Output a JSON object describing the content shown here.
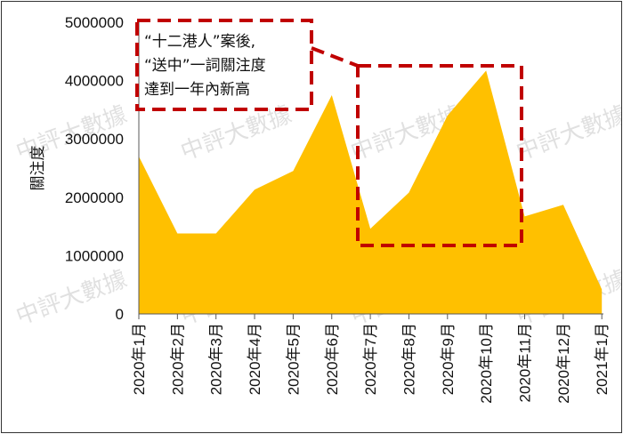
{
  "chart_data": {
    "type": "area",
    "title": "",
    "xlabel": "",
    "ylabel": "關注度",
    "categories": [
      "2020年1月",
      "2020年2月",
      "2020年3月",
      "2020年4月",
      "2020年5月",
      "2020年6月",
      "2020年7月",
      "2020年8月",
      "2020年9月",
      "2020年10月",
      "2020年11月",
      "2020年12月",
      "2021年1月"
    ],
    "series": [
      {
        "values": [
          2700000,
          1380000,
          1380000,
          2130000,
          2450000,
          3750000,
          1460000,
          2080000,
          3400000,
          4170000,
          1670000,
          1870000,
          420000
        ]
      }
    ],
    "ylim": [
      0,
      5000000
    ],
    "yticks": [
      "0",
      "1000000",
      "2000000",
      "3000000",
      "4000000",
      "5000000"
    ],
    "grid": false,
    "legend": "none",
    "fill_color": "#FFC000",
    "annotation": {
      "lines": [
        "“十二港人”案後,",
        "“送中”一詞關注度",
        "達到一年內新高"
      ],
      "color": "#C00000"
    },
    "watermark": "中評大數據"
  }
}
